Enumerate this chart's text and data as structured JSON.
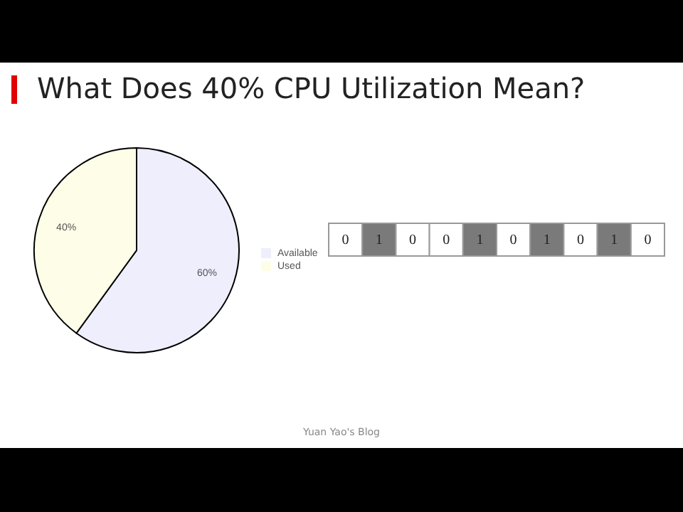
{
  "chart_data": [
    {
      "type": "pie",
      "title": "What Does 40% CPU Utilization Mean?",
      "categories": [
        "Available",
        "Used"
      ],
      "values": [
        60,
        40
      ],
      "colors": [
        "#eeeefd",
        "#fefee8"
      ],
      "value_labels": [
        "60%",
        "40%"
      ],
      "legend": "right",
      "annotations": [
        "Yuan Yao's Blog"
      ]
    },
    {
      "type": "heatmap",
      "categories": [
        null,
        null,
        null,
        null,
        null,
        null,
        null,
        null,
        null,
        null
      ],
      "y_categories": [
        null
      ],
      "cells": [
        [
          0,
          1,
          0,
          0,
          1,
          0,
          1,
          0,
          1,
          0
        ]
      ],
      "data_labels": true
    }
  ]
}
